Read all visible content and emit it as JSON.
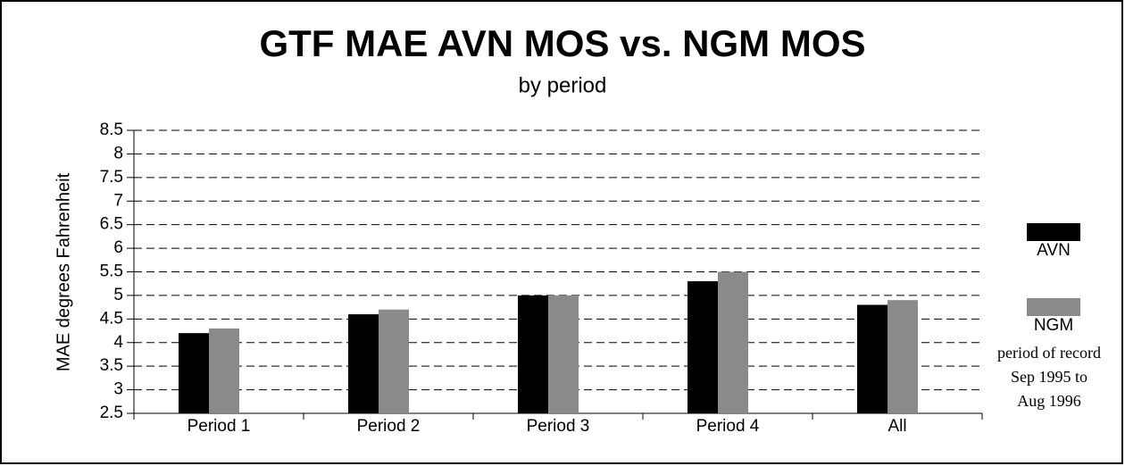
{
  "chart_data": {
    "type": "bar",
    "title": "GTF MAE AVN MOS vs. NGM MOS",
    "subtitle": "by period",
    "y_label": "MAE degrees Fahrenheit",
    "annotation": [
      "period of record",
      "Sep 1995 to",
      "Aug 1996"
    ],
    "categories": [
      "Period 1",
      "Period 2",
      "Period 3",
      "Period 4",
      "All"
    ],
    "series": [
      {
        "name": "AVN",
        "color": "#000000",
        "values": [
          4.2,
          4.6,
          5.0,
          5.3,
          4.8
        ]
      },
      {
        "name": "NGM",
        "color": "#8a8a8a",
        "values": [
          4.3,
          4.7,
          5.0,
          5.5,
          4.9
        ]
      }
    ],
    "ylim": [
      2.5,
      8.5
    ],
    "yticks": [
      2.5,
      3,
      3.5,
      4,
      4.5,
      5,
      5.5,
      6,
      6.5,
      7,
      7.5,
      8,
      8.5
    ],
    "grid": true,
    "legend": "right"
  }
}
